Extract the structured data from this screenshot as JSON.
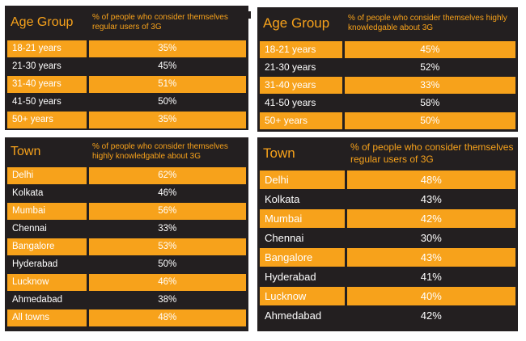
{
  "tables": [
    {
      "header": [
        "Age Group",
        "% of people who consider themselves regular users of 3G"
      ],
      "rows": [
        [
          "18-21 years",
          "35%"
        ],
        [
          "21-30 years",
          "45%"
        ],
        [
          "31-40 years",
          "51%"
        ],
        [
          "41-50 years",
          "50%"
        ],
        [
          "50+ years",
          "35%"
        ]
      ]
    },
    {
      "header": [
        "Age Group",
        "% of people who consider themselves highly knowledgable about 3G"
      ],
      "rows": [
        [
          "18-21 years",
          "45%"
        ],
        [
          "21-30 years",
          "52%"
        ],
        [
          "31-40 years",
          "33%"
        ],
        [
          "41-50 years",
          "58%"
        ],
        [
          "50+ years",
          "50%"
        ]
      ]
    },
    {
      "header": [
        "Town",
        "% of people who consider themselves highly knowledgable about 3G"
      ],
      "rows": [
        [
          "Delhi",
          "62%"
        ],
        [
          "Kolkata",
          "46%"
        ],
        [
          "Mumbai",
          "56%"
        ],
        [
          "Chennai",
          "33%"
        ],
        [
          "Bangalore",
          "53%"
        ],
        [
          "Hyderabad",
          "50%"
        ],
        [
          "Lucknow",
          "46%"
        ],
        [
          "Ahmedabad",
          "38%"
        ],
        [
          "All towns",
          "48%"
        ]
      ]
    },
    {
      "header": [
        "Town",
        "% of people who consider themselves regular users of 3G"
      ],
      "rows": [
        [
          "Delhi",
          "48%"
        ],
        [
          "Kolkata",
          "43%"
        ],
        [
          "Mumbai",
          "42%"
        ],
        [
          "Chennai",
          "30%"
        ],
        [
          "Bangalore",
          "43%"
        ],
        [
          "Hyderabad",
          "41%"
        ],
        [
          "Lucknow",
          "40%"
        ],
        [
          "Ahmedabad",
          "42%"
        ]
      ]
    }
  ],
  "colors": {
    "orange": "#f7a21b",
    "dark": "#231f20",
    "white": "#ffffff"
  }
}
